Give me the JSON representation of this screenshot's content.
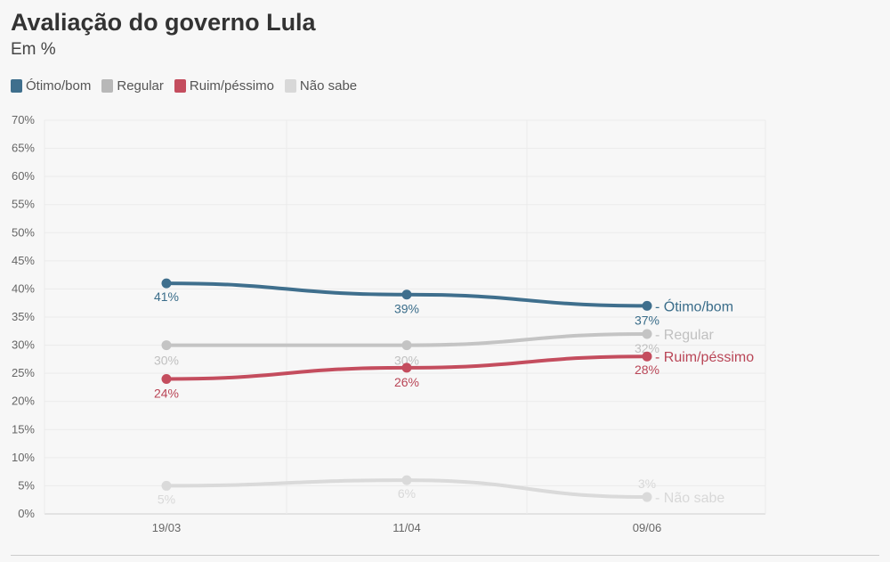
{
  "title": "Avaliação do governo Lula",
  "subtitle": "Em %",
  "legend": [
    {
      "label": "Ótimo/bom",
      "color": "#3f6f8d"
    },
    {
      "label": "Regular",
      "color": "#b8b8b8"
    },
    {
      "label": "Ruim/péssimo",
      "color": "#c44d5e"
    },
    {
      "label": "Não sabe",
      "color": "#d8d8d8"
    }
  ],
  "chart_data": {
    "type": "line",
    "x": [
      "19/03",
      "11/04",
      "09/06"
    ],
    "y_ticks": [
      "0%",
      "5%",
      "10%",
      "15%",
      "20%",
      "25%",
      "30%",
      "35%",
      "40%",
      "45%",
      "50%",
      "55%",
      "60%",
      "65%",
      "70%"
    ],
    "ylim": [
      0,
      70
    ],
    "grid": true,
    "legend_position": "top-left",
    "series": [
      {
        "name": "Ótimo/bom",
        "values": [
          41,
          39,
          37
        ],
        "labels": [
          "41%",
          "39%",
          "37%"
        ],
        "color": "#3f6f8d",
        "label_color": "#3a6d8a"
      },
      {
        "name": "Regular",
        "values": [
          30,
          30,
          32
        ],
        "labels": [
          "30%",
          "30%",
          "32%"
        ],
        "color": "#c4c4c4",
        "label_color": "#c0c0c0"
      },
      {
        "name": "Ruim/péssimo",
        "values": [
          24,
          26,
          28
        ],
        "labels": [
          "24%",
          "26%",
          "28%"
        ],
        "color": "#c44d5e",
        "label_color": "#b94556"
      },
      {
        "name": "Não sabe",
        "values": [
          5,
          6,
          3
        ],
        "labels": [
          "5%",
          "6%",
          "3%"
        ],
        "color": "#dadada",
        "label_color": "#d8d8d8"
      }
    ]
  }
}
